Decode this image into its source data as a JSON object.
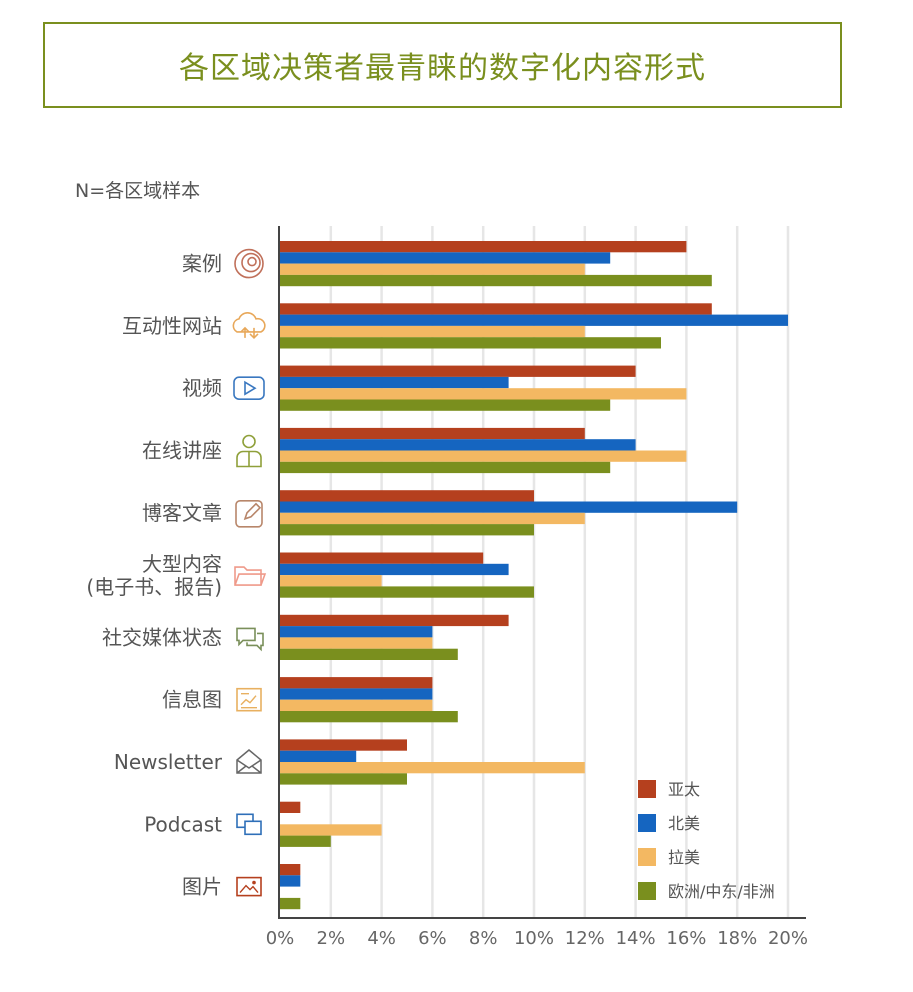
{
  "header": {
    "title": "各区域决策者最青睐的数字化内容形式",
    "sample_note": "N=各区域样本"
  },
  "chart_data": {
    "type": "bar",
    "orientation": "horizontal",
    "title": "各区域决策者最青睐的数字化内容形式",
    "xlim": [
      0,
      20
    ],
    "x_ticks": [
      "0%",
      "2%",
      "4%",
      "6%",
      "8%",
      "10%",
      "12%",
      "14%",
      "16%",
      "18%",
      "20%"
    ],
    "categories": [
      {
        "label": "案例",
        "icon": "target-icon"
      },
      {
        "label": "互动性网站",
        "icon": "cloud-upload-icon"
      },
      {
        "label": "视频",
        "icon": "play-icon"
      },
      {
        "label": "在线讲座",
        "icon": "presenter-icon"
      },
      {
        "label": "博客文章",
        "icon": "pencil-edit-icon"
      },
      {
        "label": "大型内容",
        "label2": "(电子书、报告)",
        "icon": "folder-icon"
      },
      {
        "label": "社交媒体状态",
        "icon": "chat-icon"
      },
      {
        "label": "信息图",
        "icon": "infographic-icon"
      },
      {
        "label": "Newsletter",
        "icon": "mail-icon"
      },
      {
        "label": "Podcast",
        "icon": "podcast-icon"
      },
      {
        "label": "图片",
        "icon": "image-icon"
      }
    ],
    "series": [
      {
        "name": "亚太",
        "color": "#b5401e",
        "values": [
          16,
          17,
          14,
          12,
          10,
          8,
          9,
          6,
          5,
          0.8,
          0.8
        ]
      },
      {
        "name": "北美",
        "color": "#1565c0",
        "values": [
          13,
          20,
          9,
          14,
          18,
          9,
          6,
          6,
          3,
          0,
          0.8
        ]
      },
      {
        "name": "拉美",
        "color": "#f3b862",
        "values": [
          12,
          12,
          16,
          16,
          12,
          4,
          6,
          6,
          12,
          4,
          0
        ]
      },
      {
        "name": "欧洲/中东/非洲",
        "color": "#7a8f1e",
        "values": [
          17,
          15,
          13,
          13,
          10,
          10,
          7,
          7,
          5,
          2,
          0.8
        ]
      }
    ],
    "legend_position": "bottom-right"
  }
}
